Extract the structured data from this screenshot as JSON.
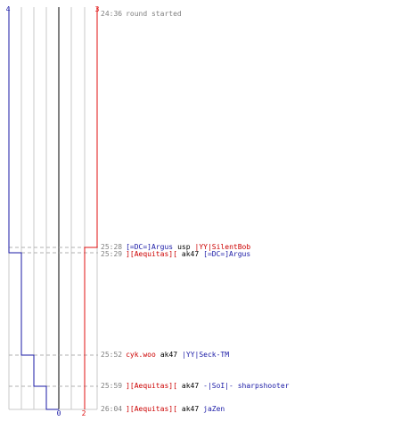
{
  "colors": {
    "team_a": "#1a1aa6",
    "team_b": "#e01010",
    "grid": "#c8c8c8",
    "center": "#808080",
    "dashed": "#b0b0b0",
    "time": "#808080"
  },
  "scale": {
    "team_a_start": "4",
    "team_a_end": "0",
    "team_b_start": "3",
    "team_b_end": "2"
  },
  "events": [
    {
      "time": "24:36",
      "message": "round started"
    },
    {
      "time": "25:28",
      "killer": "[=DC=]Argus",
      "weapon": "usp",
      "victim": "|YY|SilentBob",
      "killer_team": "blue",
      "victim_team": "red"
    },
    {
      "time": "25:29",
      "killer": "][Aequitas][",
      "weapon": "ak47",
      "victim": "[=DC=]Argus",
      "killer_team": "red",
      "victim_team": "blue"
    },
    {
      "time": "25:52",
      "killer": "cyk.woo",
      "weapon": "ak47",
      "victim": "|YY|Seck-TM",
      "killer_team": "red",
      "victim_team": "blue"
    },
    {
      "time": "25:59",
      "killer": "][Aequitas][",
      "weapon": "ak47",
      "victim": "-|SoI|- sharpshooter",
      "killer_team": "red",
      "victim_team": "blue"
    },
    {
      "time": "26:04",
      "killer": "][Aequitas][",
      "weapon": "ak47",
      "victim": "jaZen",
      "killer_team": "red",
      "victim_team": "blue"
    }
  ]
}
